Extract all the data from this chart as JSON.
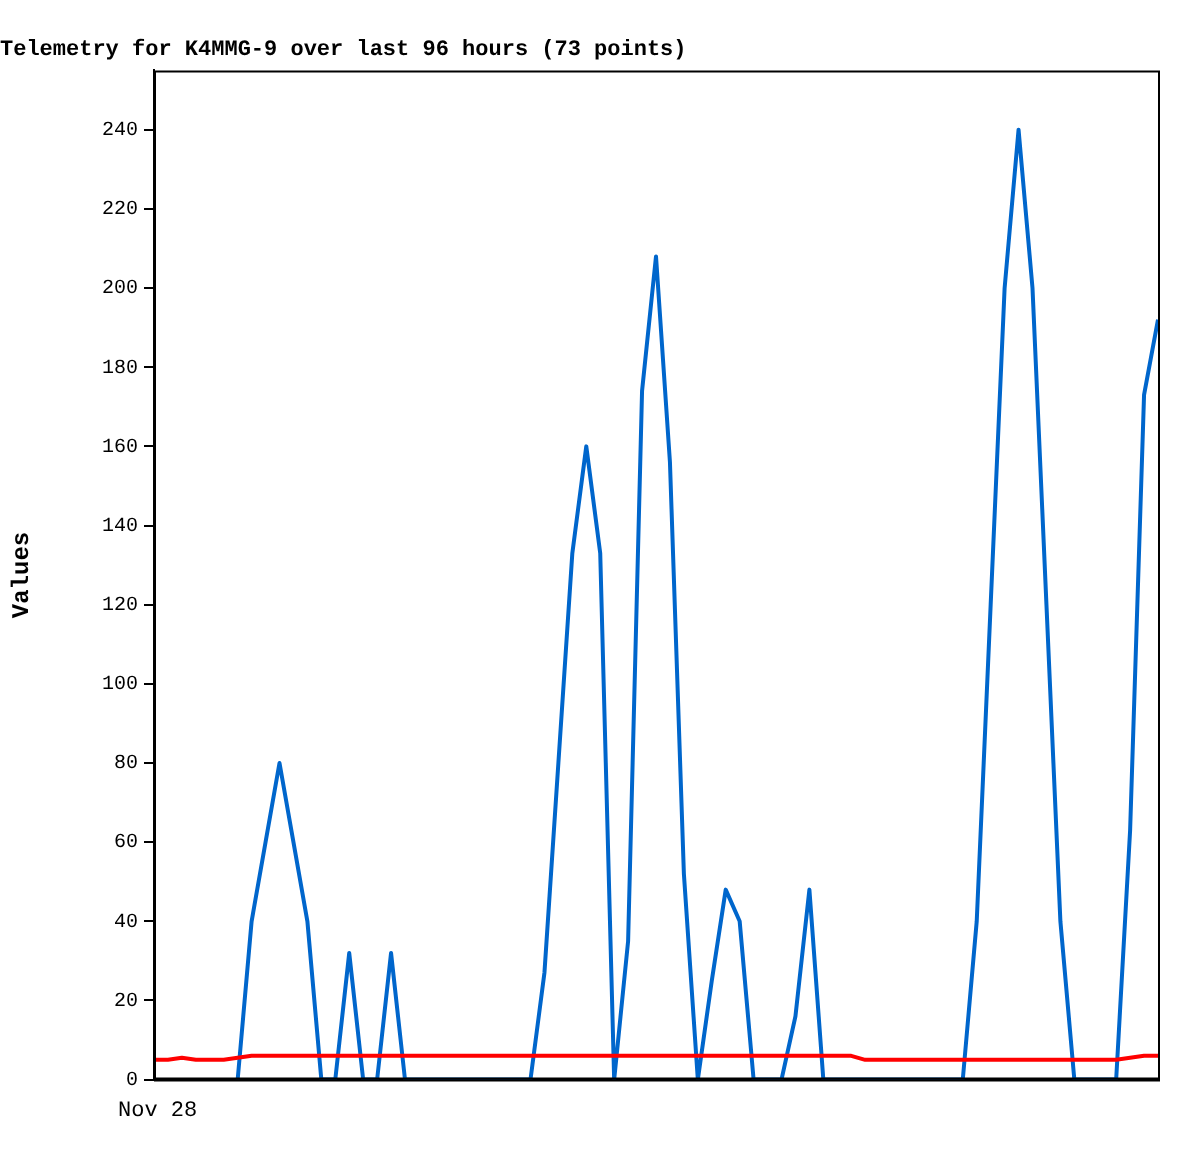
{
  "chart_data": {
    "type": "line",
    "title": "Telemetry for K4MMG-9 over last 96 hours (73 points)",
    "ylabel": "Values",
    "annotations": [
      "Nov 28"
    ],
    "ylim": [
      0,
      255
    ],
    "yticks": [
      0,
      20,
      40,
      60,
      80,
      100,
      120,
      140,
      160,
      180,
      200,
      220,
      240
    ],
    "grid": false,
    "legend": false,
    "marker": "none",
    "line_style": "solid",
    "categories": [
      null,
      null,
      null,
      null,
      null,
      null,
      null,
      null,
      null,
      null,
      null,
      null,
      null,
      null,
      null,
      null,
      null,
      null,
      null,
      null,
      null,
      null,
      null,
      null,
      null,
      null,
      null,
      null,
      null,
      null,
      null,
      null,
      null,
      null,
      null,
      null,
      null,
      null,
      null,
      null,
      null,
      null,
      null,
      null,
      null,
      null,
      null,
      null,
      null,
      null,
      null,
      null,
      null,
      null,
      null,
      null,
      null,
      null,
      null,
      null,
      null,
      null,
      null,
      null,
      null,
      null,
      null,
      null,
      null,
      null,
      null,
      null,
      null
    ],
    "series": [
      {
        "color": "#000000",
        "values": [
          0,
          0,
          0,
          0,
          0,
          0,
          0,
          0,
          0,
          0,
          0,
          0,
          0,
          0,
          0,
          0,
          0,
          0,
          0,
          0,
          0,
          0,
          0,
          0,
          0,
          0,
          0,
          0,
          0,
          0,
          0,
          0,
          0,
          0,
          0,
          0,
          0,
          0,
          0,
          0,
          0,
          0,
          0,
          0,
          0,
          0,
          0,
          0,
          0,
          0,
          0,
          0,
          0,
          0,
          0,
          0,
          0,
          0,
          0,
          0,
          0,
          0,
          0,
          0,
          0,
          0,
          0,
          0,
          0,
          0,
          0,
          0,
          0
        ]
      },
      {
        "color": "#ff0000",
        "values": [
          5,
          5,
          5.5,
          5,
          5,
          5,
          5.5,
          6,
          6,
          6,
          6,
          6,
          6,
          6,
          6,
          6,
          6,
          6,
          6,
          6,
          6,
          6,
          6,
          6,
          6,
          6,
          6,
          6,
          6,
          6,
          6,
          6,
          6,
          6,
          6,
          6,
          6,
          6,
          6,
          6,
          6,
          6,
          6,
          6,
          6,
          6,
          6,
          6,
          6,
          6,
          6,
          5,
          5,
          5,
          5,
          5,
          5,
          5,
          5,
          5,
          5,
          5,
          5,
          5,
          5,
          5,
          5,
          5,
          5,
          5,
          5.5,
          6,
          6
        ]
      },
      {
        "color": "#0066cc",
        "values": [
          null,
          null,
          null,
          null,
          null,
          null,
          0,
          40,
          60,
          80,
          60,
          40,
          0,
          0,
          32,
          0,
          0,
          32,
          0,
          0,
          0,
          0,
          0,
          0,
          0,
          0,
          0,
          0,
          27,
          80,
          133,
          160,
          133,
          0,
          35,
          174,
          208,
          156,
          52,
          0,
          25,
          48,
          40,
          0,
          0,
          0,
          16,
          48,
          0,
          0,
          0,
          0,
          0,
          0,
          0,
          0,
          0,
          0,
          0,
          40,
          120,
          200,
          240,
          200,
          120,
          40,
          0,
          0,
          0,
          0,
          63,
          173,
          192
        ]
      }
    ]
  }
}
